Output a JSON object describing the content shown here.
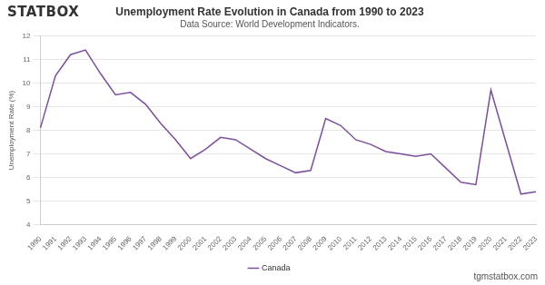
{
  "chart_data": {
    "type": "line",
    "title": "Unemployment Rate Evolution in Canada from 1990 to 2023",
    "subtitle": "Data Source: World Development Indicators.",
    "logo": "STATBOX",
    "footer": "tgmstatbox.com",
    "y_label": "Unemployment Rate (%)",
    "categories": [
      "1990",
      "1991",
      "1992",
      "1993",
      "1994",
      "1995",
      "1996",
      "1997",
      "1998",
      "1999",
      "2000",
      "2001",
      "2002",
      "2003",
      "2004",
      "2005",
      "2006",
      "2007",
      "2008",
      "2009",
      "2010",
      "2011",
      "2012",
      "2013",
      "2014",
      "2015",
      "2016",
      "2017",
      "2018",
      "2019",
      "2020",
      "2021",
      "2022",
      "2023"
    ],
    "series": [
      {
        "name": "Canada",
        "color": "#7b4f9e",
        "values": [
          8.1,
          10.3,
          11.2,
          11.4,
          10.4,
          9.5,
          9.6,
          9.1,
          8.3,
          7.6,
          6.8,
          7.2,
          7.7,
          7.6,
          7.2,
          6.8,
          6.5,
          6.2,
          6.3,
          8.5,
          8.2,
          7.6,
          7.4,
          7.1,
          7.0,
          6.9,
          7.0,
          6.4,
          5.8,
          5.7,
          9.7,
          7.5,
          5.3,
          5.4
        ]
      }
    ],
    "ylim": [
      4,
      12
    ],
    "yticks": [
      4,
      5,
      6,
      7,
      8,
      9,
      10,
      11,
      12
    ],
    "grid": true,
    "legend": "bottom"
  }
}
